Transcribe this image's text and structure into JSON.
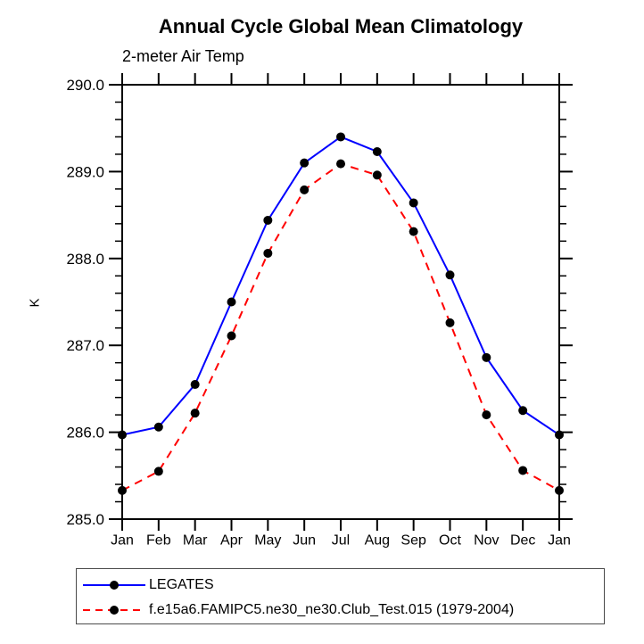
{
  "page": {
    "background": "#ffffff"
  },
  "chart_data": {
    "type": "line",
    "title": "Annual Cycle Global Mean Climatology",
    "subtitle": "2-meter Air Temp",
    "ylabel": "K",
    "categories": [
      "Jan",
      "Feb",
      "Mar",
      "Apr",
      "May",
      "Jun",
      "Jul",
      "Aug",
      "Sep",
      "Oct",
      "Nov",
      "Dec",
      "Jan"
    ],
    "series": [
      {
        "name": "LEGATES",
        "line_color": "#0000ff",
        "line_style": "solid",
        "marker": "filled-circle",
        "marker_color": "#000000",
        "values": [
          285.97,
          286.06,
          286.55,
          287.5,
          288.44,
          289.1,
          289.4,
          289.23,
          288.64,
          287.81,
          286.86,
          286.25,
          285.97
        ]
      },
      {
        "name": "f.e15a6.FAMIPC5.ne30_ne30.Club_Test.015 (1979-2004)",
        "line_color": "#ff0000",
        "line_style": "dashed",
        "marker": "filled-circle",
        "marker_color": "#000000",
        "values": [
          285.33,
          285.55,
          286.22,
          287.11,
          288.06,
          288.79,
          289.09,
          288.96,
          288.31,
          287.26,
          286.2,
          285.56,
          285.33
        ]
      }
    ],
    "ylim": [
      285.0,
      290.0
    ],
    "ytick_labels": [
      "285.0",
      "286.0",
      "287.0",
      "288.0",
      "289.0",
      "290.0"
    ],
    "ytick_major_step": 1.0,
    "ytick_minor_step": 0.2,
    "grid": false,
    "axis_color": "#000000",
    "legend_position": "bottom-left-boxed"
  }
}
